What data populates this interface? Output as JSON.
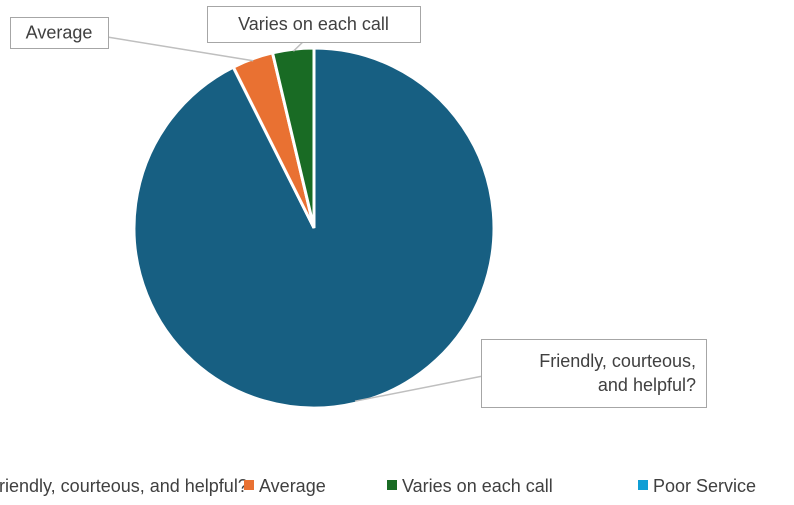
{
  "chart_data": {
    "type": "pie",
    "title": "",
    "slices": [
      {
        "label": "Friendly, courteous, and helpful?",
        "value": 92.6,
        "color": "#175F82"
      },
      {
        "label": "Average",
        "value": 3.7,
        "color": "#E97132"
      },
      {
        "label": "Varies on each call",
        "value": 3.7,
        "color": "#196B24"
      },
      {
        "label": "Poor Service",
        "value": 0,
        "color": "#0F9ED5"
      }
    ],
    "data_labels": [
      {
        "slice": 0,
        "lines": [
          "Friendly, courteous,",
          "and helpful?"
        ]
      },
      {
        "slice": 1,
        "lines": [
          "Average"
        ]
      },
      {
        "slice": 2,
        "lines": [
          "Varies on each call"
        ]
      }
    ],
    "legend": {
      "placement": "bottom",
      "items": [
        "Friendly, courteous, and helpful?",
        "Average",
        "Varies on each call",
        "Poor Service"
      ]
    }
  }
}
